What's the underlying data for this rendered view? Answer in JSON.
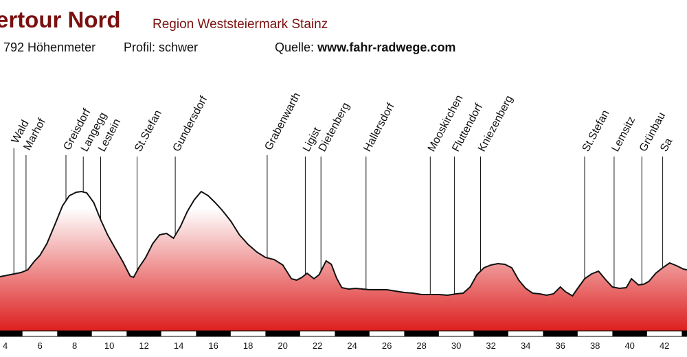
{
  "header": {
    "title": "ertour Nord",
    "region": "Region Weststeiermark Stainz",
    "stats": "792 Höhenmeter",
    "profile": "Profil: schwer",
    "source_label": "Quelle:",
    "source_url": "www.fahr-radwege.com"
  },
  "chart_data": {
    "type": "area",
    "title": "",
    "xlabel": "",
    "ylabel": "",
    "xlim": [
      3.7,
      43.3
    ],
    "x_ticks": [
      4,
      6,
      8,
      10,
      12,
      14,
      16,
      18,
      20,
      22,
      24,
      26,
      28,
      30,
      32,
      34,
      36,
      38,
      40,
      42
    ],
    "colors": {
      "fill_top": "#ffffff",
      "fill_bottom": "#dd1f1f",
      "line": "#111111",
      "axis_bar": "#000000"
    },
    "series": [
      {
        "x": [
          3.7,
          4.3,
          4.9,
          5.3,
          5.7,
          6.0,
          6.4,
          6.9,
          7.3,
          7.7,
          8.1,
          8.4,
          8.7,
          9.1,
          9.5,
          9.9,
          10.3,
          10.8,
          11.2,
          11.4,
          11.7,
          12.1,
          12.5,
          12.9,
          13.3,
          13.7,
          14.1,
          14.5,
          14.9,
          15.3,
          15.7,
          16.1,
          16.5,
          17.0,
          17.5,
          18.0,
          18.5,
          19.0,
          19.5,
          20.0,
          20.5,
          20.8,
          21.1,
          21.4,
          21.8,
          22.1,
          22.5,
          22.8,
          23.1,
          23.4,
          23.8,
          24.2,
          24.6,
          25.0,
          25.5,
          26.0,
          26.5,
          27.0,
          27.5,
          28.0,
          28.5,
          29.0,
          29.5,
          30.0,
          30.4,
          30.8,
          31.2,
          31.6,
          32.0,
          32.4,
          32.8,
          33.2,
          33.6,
          34.0,
          34.4,
          34.8,
          35.2,
          35.6,
          36.0,
          36.3,
          36.7,
          37.0,
          37.4,
          37.8,
          38.2,
          38.6,
          39.0,
          39.4,
          39.8,
          40.1,
          40.5,
          40.8,
          41.1,
          41.5,
          41.9,
          42.3,
          42.7,
          43.1,
          43.3
        ],
        "y": [
          403,
          400,
          397,
          393,
          380,
          372,
          355,
          325,
          300,
          285,
          280,
          279,
          281,
          295,
          320,
          342,
          360,
          382,
          402,
          404,
          390,
          375,
          355,
          342,
          340,
          347,
          330,
          308,
          291,
          279,
          285,
          295,
          306,
          322,
          342,
          356,
          367,
          375,
          378,
          386,
          406,
          408,
          404,
          398,
          406,
          400,
          380,
          385,
          405,
          419,
          421,
          420,
          421,
          422,
          422,
          422,
          424,
          426,
          427,
          429,
          429,
          429,
          430,
          428,
          427,
          418,
          400,
          390,
          386,
          384,
          385,
          390,
          408,
          420,
          427,
          428,
          430,
          428,
          418,
          425,
          431,
          420,
          406,
          399,
          395,
          407,
          418,
          420,
          419,
          406,
          415,
          414,
          410,
          398,
          390,
          383,
          387,
          392,
          393
        ]
      }
    ],
    "places": [
      {
        "name": "Wald",
        "x": 4.5,
        "label_top": 210
      },
      {
        "name": "Marhof",
        "x": 5.2,
        "label_top": 220
      },
      {
        "name": "Greisdorf",
        "x": 7.5,
        "label_top": 220
      },
      {
        "name": "Langegg",
        "x": 8.5,
        "label_top": 222
      },
      {
        "name": "Lestein",
        "x": 9.5,
        "label_top": 222
      },
      {
        "name": "St.Stefan",
        "x": 11.6,
        "label_top": 222
      },
      {
        "name": "Gundersdorf",
        "x": 13.8,
        "label_top": 222
      },
      {
        "name": "Grabenwarth",
        "x": 19.1,
        "label_top": 220
      },
      {
        "name": "Ligist",
        "x": 21.3,
        "label_top": 222
      },
      {
        "name": "Dietenberg",
        "x": 22.2,
        "label_top": 222
      },
      {
        "name": "Hallersdorf",
        "x": 24.8,
        "label_top": 222
      },
      {
        "name": "Mooskirchen",
        "x": 28.5,
        "label_top": 222
      },
      {
        "name": "Fluttendorf",
        "x": 29.9,
        "label_top": 222
      },
      {
        "name": "Kniezenberg",
        "x": 31.4,
        "label_top": 222
      },
      {
        "name": "St.Stefan",
        "x": 37.4,
        "label_top": 222
      },
      {
        "name": "Lemsitz",
        "x": 39.1,
        "label_top": 222
      },
      {
        "name": "Grünbau",
        "x": 40.7,
        "label_top": 222
      },
      {
        "name": "Sa",
        "x": 41.9,
        "label_top": 222
      }
    ]
  }
}
